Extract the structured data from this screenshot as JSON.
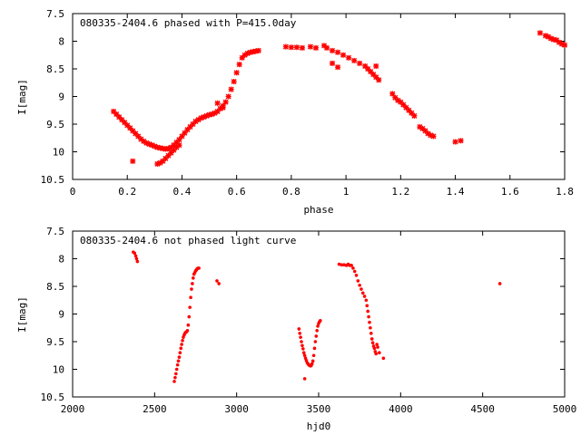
{
  "marker_color": "#ff0000",
  "chart_data": [
    {
      "type": "scatter",
      "title": "080335-2404.6 phased with P=415.0day",
      "xlabel": "phase",
      "ylabel": "I[mag]",
      "xlim": [
        0,
        1.8
      ],
      "ylim": [
        10.5,
        7.5
      ],
      "y_inverted": true,
      "xticks": [
        "0",
        "0.2",
        "0.4",
        "0.6",
        "0.8",
        "1",
        "1.2",
        "1.4",
        "1.6",
        "1.8"
      ],
      "yticks": [
        "7.5",
        "8",
        "8.5",
        "9",
        "9.5",
        "10",
        "10.5"
      ],
      "grid": false,
      "legend": "none",
      "marker": "star",
      "series": [
        {
          "x": [
            0.15,
            0.16,
            0.17,
            0.18,
            0.19,
            0.2,
            0.21,
            0.22,
            0.23,
            0.24,
            0.25,
            0.26,
            0.27,
            0.28,
            0.29,
            0.3,
            0.31,
            0.32,
            0.33,
            0.34,
            0.35,
            0.36,
            0.37,
            0.38,
            0.39,
            0.4,
            0.41,
            0.42,
            0.43,
            0.44,
            0.45,
            0.46,
            0.47,
            0.48,
            0.49,
            0.5,
            0.51,
            0.52,
            0.53,
            0.54,
            0.55,
            0.56,
            0.57,
            0.58,
            0.59,
            0.6,
            0.61,
            0.62,
            0.63,
            0.64,
            0.65,
            0.66,
            0.67,
            0.68,
            0.22,
            0.31,
            0.32,
            0.33,
            0.34,
            0.35,
            0.36,
            0.37,
            0.38,
            0.39,
            0.53,
            0.55,
            0.78,
            0.8,
            0.82,
            0.84,
            0.87,
            0.89,
            0.92,
            0.93,
            0.95,
            0.97,
            0.99,
            1.01,
            1.03,
            1.05,
            1.07,
            1.08,
            1.09,
            1.1,
            1.11,
            1.12,
            0.95,
            0.97,
            1.11,
            1.17,
            1.18,
            1.19,
            1.2,
            1.21,
            1.22,
            1.23,
            1.24,
            1.25,
            1.27,
            1.28,
            1.29,
            1.3,
            1.31,
            1.32,
            1.4,
            1.42,
            1.71,
            1.73,
            1.74,
            1.75,
            1.76,
            1.77,
            1.78,
            1.79,
            1.8
          ],
          "y": [
            9.27,
            9.32,
            9.37,
            9.42,
            9.47,
            9.52,
            9.57,
            9.62,
            9.67,
            9.72,
            9.77,
            9.81,
            9.84,
            9.86,
            9.88,
            9.9,
            9.92,
            9.93,
            9.94,
            9.95,
            9.94,
            9.92,
            9.88,
            9.83,
            9.78,
            9.72,
            9.66,
            9.6,
            9.55,
            9.5,
            9.45,
            9.42,
            9.39,
            9.37,
            9.35,
            9.33,
            9.32,
            9.3,
            9.27,
            9.22,
            9.17,
            9.1,
            9.0,
            8.87,
            8.73,
            8.57,
            8.42,
            8.3,
            8.25,
            8.22,
            8.2,
            8.19,
            8.18,
            8.17,
            10.17,
            10.22,
            10.2,
            10.17,
            10.12,
            10.07,
            10.02,
            9.97,
            9.92,
            9.88,
            9.12,
            9.2,
            8.1,
            8.11,
            8.11,
            8.12,
            8.1,
            8.12,
            8.08,
            8.12,
            8.17,
            8.2,
            8.25,
            8.3,
            8.35,
            8.4,
            8.45,
            8.5,
            8.55,
            8.6,
            8.65,
            8.7,
            8.4,
            8.47,
            8.45,
            8.95,
            9.02,
            9.07,
            9.1,
            9.15,
            9.2,
            9.25,
            9.3,
            9.35,
            9.55,
            9.58,
            9.62,
            9.67,
            9.7,
            9.72,
            9.82,
            9.8,
            7.85,
            7.9,
            7.92,
            7.95,
            7.97,
            7.98,
            8.02,
            8.05,
            8.07
          ]
        }
      ]
    },
    {
      "type": "scatter",
      "title": "080335-2404.6 not phased light curve",
      "xlabel": "hjd0",
      "ylabel": "I[mag]",
      "xlim": [
        2000,
        5000
      ],
      "ylim": [
        10.5,
        7.5
      ],
      "y_inverted": true,
      "xticks": [
        "2000",
        "2500",
        "3000",
        "3500",
        "4000",
        "4500",
        "5000"
      ],
      "yticks": [
        "7.5",
        "8",
        "8.5",
        "9",
        "9.5",
        "10",
        "10.5"
      ],
      "grid": false,
      "legend": "none",
      "marker": "dot",
      "series": [
        {
          "x": [
            2370,
            2378,
            2385,
            2390,
            2395,
            2620,
            2625,
            2630,
            2635,
            2640,
            2645,
            2650,
            2655,
            2660,
            2665,
            2670,
            2675,
            2680,
            2685,
            2690,
            2695,
            2700,
            2705,
            2710,
            2715,
            2720,
            2725,
            2730,
            2735,
            2740,
            2745,
            2750,
            2755,
            2760,
            2765,
            2770,
            2880,
            2892,
            3380,
            3385,
            3390,
            3395,
            3400,
            3405,
            3410,
            3415,
            3420,
            3425,
            3430,
            3435,
            3440,
            3445,
            3450,
            3455,
            3460,
            3465,
            3470,
            3475,
            3480,
            3485,
            3490,
            3495,
            3500,
            3505,
            3510,
            3415,
            3625,
            3640,
            3655,
            3670,
            3680,
            3690,
            3700,
            3710,
            3720,
            3730,
            3740,
            3750,
            3760,
            3770,
            3780,
            3790,
            3795,
            3800,
            3805,
            3810,
            3815,
            3820,
            3825,
            3830,
            3835,
            3840,
            3845,
            3850,
            3855,
            3860,
            3870,
            3895,
            4605
          ],
          "y": [
            7.88,
            7.9,
            7.95,
            8.0,
            8.05,
            10.22,
            10.15,
            10.08,
            10.0,
            9.92,
            9.85,
            9.78,
            9.7,
            9.62,
            9.55,
            9.48,
            9.42,
            9.38,
            9.35,
            9.33,
            9.32,
            9.3,
            9.2,
            9.05,
            8.88,
            8.7,
            8.55,
            8.45,
            8.35,
            8.28,
            8.25,
            8.22,
            8.2,
            8.18,
            8.17,
            8.17,
            8.4,
            8.45,
            9.27,
            9.35,
            9.42,
            9.5,
            9.57,
            9.63,
            9.7,
            9.75,
            9.8,
            9.84,
            9.88,
            9.9,
            9.92,
            9.93,
            9.94,
            9.93,
            9.9,
            9.85,
            9.75,
            9.62,
            9.5,
            9.4,
            9.3,
            9.22,
            9.17,
            9.14,
            9.12,
            10.17,
            8.1,
            8.11,
            8.11,
            8.12,
            8.1,
            8.12,
            8.12,
            8.17,
            8.23,
            8.3,
            8.4,
            8.48,
            8.55,
            8.62,
            8.68,
            8.75,
            8.85,
            8.95,
            9.05,
            9.15,
            9.25,
            9.35,
            9.45,
            9.52,
            9.58,
            9.62,
            9.68,
            9.72,
            9.55,
            9.6,
            9.7,
            9.8,
            8.45
          ]
        }
      ]
    }
  ]
}
